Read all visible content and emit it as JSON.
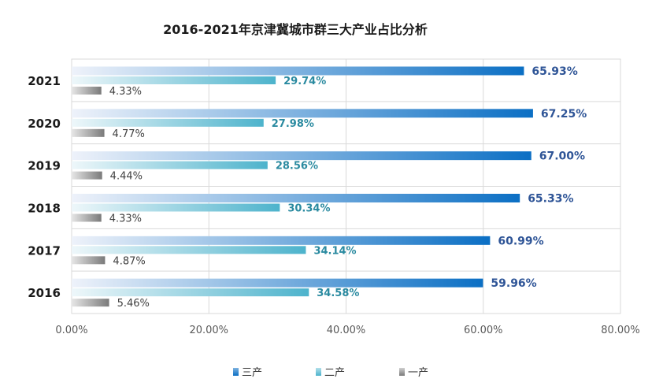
{
  "chart_data": {
    "type": "bar",
    "orientation": "horizontal",
    "title": "2016-2021年京津冀城市群三大产业占比分析",
    "categories": [
      "2021",
      "2020",
      "2019",
      "2018",
      "2017",
      "2016"
    ],
    "series": [
      {
        "name": "三产",
        "values": [
          65.93,
          67.25,
          67.0,
          65.33,
          60.99,
          59.96
        ],
        "labels": [
          "65.93%",
          "67.25%",
          "67.00%",
          "65.33%",
          "60.99%",
          "59.96%"
        ],
        "color_start": "#eef2fa",
        "color_end": "#0b6fc4",
        "label_color": "#2f5597"
      },
      {
        "name": "二产",
        "values": [
          29.74,
          27.98,
          28.56,
          30.34,
          34.14,
          34.58
        ],
        "labels": [
          "29.74%",
          "27.98%",
          "28.56%",
          "30.34%",
          "34.14%",
          "34.58%"
        ],
        "color_start": "#eef7fa",
        "color_end": "#4db3cc",
        "label_color": "#2a8aa0"
      },
      {
        "name": "一产",
        "values": [
          4.33,
          4.77,
          4.44,
          4.33,
          4.87,
          5.46
        ],
        "labels": [
          "4.33%",
          "4.77%",
          "4.44%",
          "4.33%",
          "4.87%",
          "5.46%"
        ],
        "color_start": "#e6e6e6",
        "color_end": "#7a7a7a",
        "label_color": "#404040"
      }
    ],
    "xlim": [
      0,
      80
    ],
    "xticks": [
      "0.00%",
      "20.00%",
      "40.00%",
      "60.00%",
      "80.00%"
    ],
    "grid": true,
    "legend_position": "bottom"
  }
}
